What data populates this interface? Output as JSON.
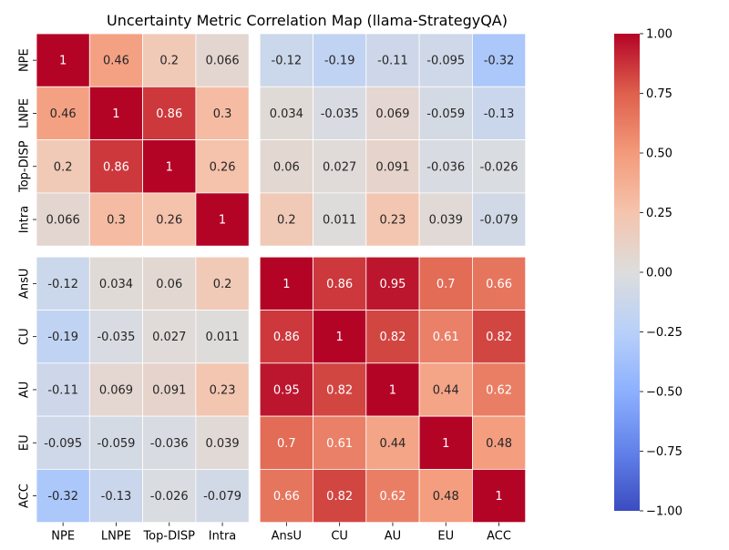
{
  "chart_data": {
    "type": "heatmap",
    "title": "Uncertainty Metric Correlation Map (llama-StrategyQA)",
    "row_labels": [
      "NPE",
      "LNPE",
      "Top-DISP",
      "Intra",
      "AnsU",
      "CU",
      "AU",
      "EU",
      "ACC"
    ],
    "col_labels": [
      "NPE",
      "LNPE",
      "Top-DISP",
      "Intra",
      "AnsU",
      "CU",
      "AU",
      "EU",
      "ACC"
    ],
    "values": [
      [
        1,
        0.46,
        0.2,
        0.066,
        -0.12,
        -0.19,
        -0.11,
        -0.095,
        -0.32
      ],
      [
        0.46,
        1,
        0.86,
        0.3,
        0.034,
        -0.035,
        0.069,
        -0.059,
        -0.13
      ],
      [
        0.2,
        0.86,
        1,
        0.26,
        0.06,
        0.027,
        0.091,
        -0.036,
        -0.026
      ],
      [
        0.066,
        0.3,
        0.26,
        1,
        0.2,
        0.011,
        0.23,
        0.039,
        -0.079
      ],
      [
        -0.12,
        0.034,
        0.06,
        0.2,
        1,
        0.86,
        0.95,
        0.7,
        0.66
      ],
      [
        -0.19,
        -0.035,
        0.027,
        0.011,
        0.86,
        1,
        0.82,
        0.61,
        0.82
      ],
      [
        -0.11,
        0.069,
        0.091,
        0.23,
        0.95,
        0.82,
        1,
        0.44,
        0.62
      ],
      [
        -0.095,
        -0.059,
        -0.036,
        0.039,
        0.7,
        0.61,
        0.44,
        1,
        0.48
      ],
      [
        -0.32,
        -0.13,
        -0.026,
        -0.079,
        0.66,
        0.82,
        0.62,
        0.48,
        1
      ]
    ],
    "value_labels": [
      [
        "1",
        "0.46",
        "0.2",
        "0.066",
        "-0.12",
        "-0.19",
        "-0.11",
        "-0.095",
        "-0.32"
      ],
      [
        "0.46",
        "1",
        "0.86",
        "0.3",
        "0.034",
        "-0.035",
        "0.069",
        "-0.059",
        "-0.13"
      ],
      [
        "0.2",
        "0.86",
        "1",
        "0.26",
        "0.06",
        "0.027",
        "0.091",
        "-0.036",
        "-0.026"
      ],
      [
        "0.066",
        "0.3",
        "0.26",
        "1",
        "0.2",
        "0.011",
        "0.23",
        "0.039",
        "-0.079"
      ],
      [
        "-0.12",
        "0.034",
        "0.06",
        "0.2",
        "1",
        "0.86",
        "0.95",
        "0.7",
        "0.66"
      ],
      [
        "-0.19",
        "-0.035",
        "0.027",
        "0.011",
        "0.86",
        "1",
        "0.82",
        "0.61",
        "0.82"
      ],
      [
        "-0.11",
        "0.069",
        "0.091",
        "0.23",
        "0.95",
        "0.82",
        "1",
        "0.44",
        "0.62"
      ],
      [
        "-0.095",
        "-0.059",
        "-0.036",
        "0.039",
        "0.7",
        "0.61",
        "0.44",
        "1",
        "0.48"
      ],
      [
        "-0.32",
        "-0.13",
        "-0.026",
        "-0.079",
        "0.66",
        "0.82",
        "0.62",
        "0.48",
        "1"
      ]
    ],
    "group_split_after": 4,
    "colormap": "coolwarm",
    "vmin": -1,
    "vmax": 1,
    "colorbar_ticks": [
      1.0,
      0.75,
      0.5,
      0.25,
      0.0,
      -0.25,
      -0.5,
      -0.75,
      -1.0
    ],
    "colorbar_tick_labels": [
      "1.00",
      "0.75",
      "0.50",
      "0.25",
      "0.00",
      "−0.25",
      "−0.50",
      "−0.75",
      "−1.00"
    ],
    "colorbar_position": "right",
    "grid": false
  }
}
